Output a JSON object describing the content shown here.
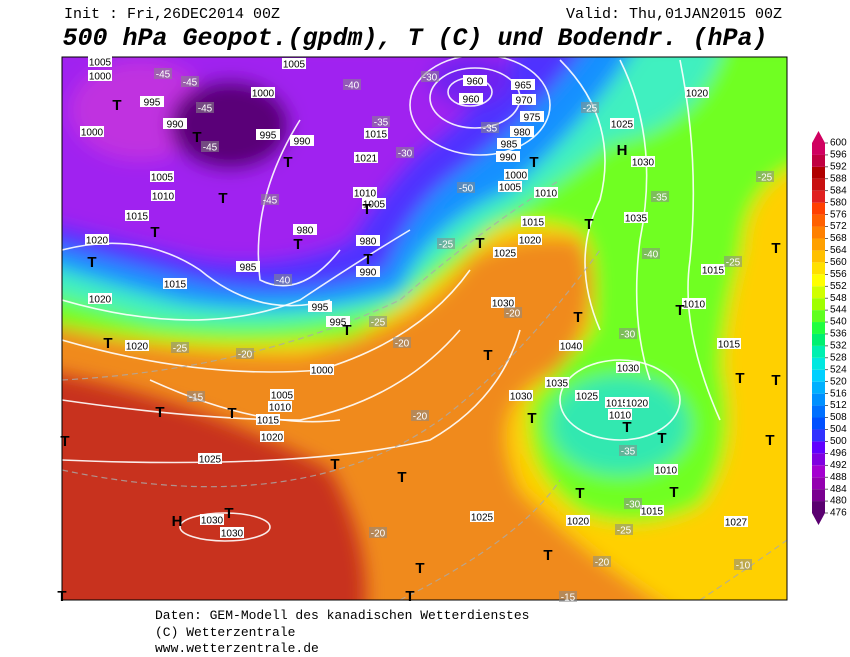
{
  "header": {
    "init": "Init : Fri,26DEC2014 00Z",
    "valid": "Valid: Thu,01JAN2015 00Z",
    "title": "500 hPa Geopot.(gpdm), T (C) und Bodendr. (hPa)"
  },
  "colorbar": {
    "levels": [
      476,
      480,
      484,
      488,
      492,
      496,
      500,
      504,
      508,
      512,
      516,
      520,
      524,
      528,
      532,
      536,
      540,
      544,
      548,
      552,
      556,
      560,
      564,
      568,
      572,
      576,
      580,
      584,
      588,
      592,
      596,
      600
    ],
    "colors": [
      "#5a0070",
      "#7a0090",
      "#9400b0",
      "#a400d0",
      "#8000e0",
      "#6000ff",
      "#3030ff",
      "#0050ff",
      "#0070ff",
      "#0090ff",
      "#00b0ff",
      "#00d0ff",
      "#00e8e0",
      "#00f0b0",
      "#00f070",
      "#20ff40",
      "#60ff20",
      "#a0ff00",
      "#d0ff00",
      "#ffff00",
      "#ffe000",
      "#ffc000",
      "#ffa000",
      "#ff8000",
      "#ff6000",
      "#ff4000",
      "#e02020",
      "#c81010",
      "#b00000",
      "#c00040",
      "#d00060"
    ]
  },
  "map": {
    "pressure_labels": [
      "1005",
      "1000",
      "995",
      "990",
      "1000",
      "1005",
      "1010",
      "1015",
      "1020",
      "1015",
      "1020",
      "1020",
      "985",
      "980",
      "995",
      "995",
      "1000",
      "1005",
      "1010",
      "1015",
      "1020",
      "1025",
      "1030",
      "1030",
      "1005",
      "1000",
      "995",
      "990",
      "1021",
      "1015",
      "1010",
      "1005",
      "980",
      "990",
      "960",
      "960",
      "965",
      "970",
      "975",
      "980",
      "985",
      "990",
      "1000",
      "1005",
      "1010",
      "1015",
      "1020",
      "1025",
      "1030",
      "1040",
      "1035",
      "1030",
      "1025",
      "1015",
      "1020",
      "1010",
      "1030",
      "1020",
      "1025",
      "1030",
      "1035",
      "1015",
      "1010",
      "1015",
      "1010",
      "1015",
      "1020",
      "1025",
      "1027"
    ],
    "temperature_labels": [
      "-45",
      "-45",
      "-45",
      "-45",
      "-45",
      "-40",
      "-35",
      "-30",
      "-50",
      "-35",
      "-25",
      "-25",
      "-20",
      "-20",
      "-25",
      "-35",
      "-40",
      "-30",
      "-35",
      "-30",
      "-25",
      "-20",
      "-20",
      "-20",
      "-10",
      "-15",
      "-25",
      "-25",
      "-15",
      "-20",
      "-25",
      "-40",
      "-30"
    ],
    "symbols": [
      "T",
      "T",
      "T",
      "T",
      "T",
      "T",
      "T",
      "T",
      "T",
      "T",
      "T",
      "T",
      "T",
      "T",
      "T",
      "T",
      "H",
      "T",
      "T",
      "T",
      "T",
      "T",
      "T",
      "T",
      "T",
      "T",
      "T",
      "T",
      "T",
      "T",
      "T",
      "T",
      "H",
      "T",
      "T",
      "T",
      "T",
      "T"
    ]
  },
  "footer": {
    "source": "Daten: GEM-Modell des kanadischen Wetterdienstes",
    "copyright": "(C) Wetterzentrale",
    "url": "www.wetterzentrale.de"
  }
}
